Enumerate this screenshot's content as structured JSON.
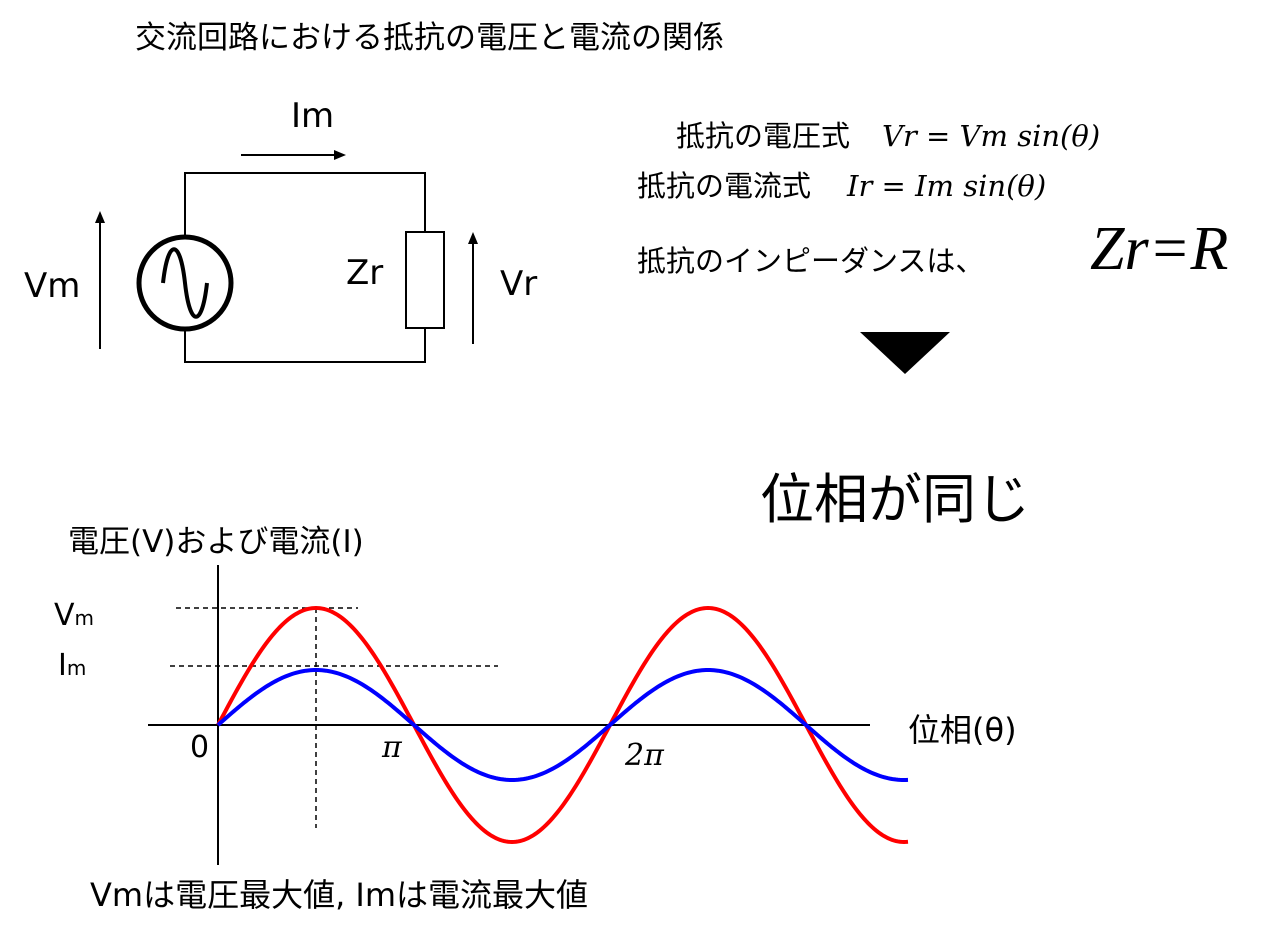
{
  "title": "交流回路における抵抗の電圧と電流の関係",
  "circuit": {
    "current_label": "Im",
    "source_voltage_label": "Vm",
    "resistor_label": "Zr",
    "resistor_voltage_label": "Vr"
  },
  "equations": {
    "voltage_prefix": "抵抗の電圧式",
    "voltage_formula": "Vr = Vm sin(θ)",
    "current_prefix": "抵抗の電流式",
    "current_formula": "Ir =  Im sin(θ)",
    "impedance_prefix": "抵抗のインピーダンスは、",
    "impedance_formula": "Zr=R"
  },
  "conclusion": "位相が同じ",
  "chart_data": {
    "type": "line",
    "ylabel": "電圧(V)および電流(I)",
    "xlabel": "位相(θ)",
    "x_tick_labels": [
      "0",
      "π",
      "2π"
    ],
    "y_tick_labels": [
      "Vm",
      "Im"
    ],
    "x_range": [
      0,
      "≈3.55π"
    ],
    "series": [
      {
        "color": "#ff0000",
        "amplitude": "Vm",
        "relative_amplitude": 1.0
      },
      {
        "color": "#0000ff",
        "amplitude": "Im",
        "relative_amplitude": 0.47
      }
    ]
  },
  "footnote": "Vmは電圧最大値, Imは電流最大値",
  "colors": {
    "voltage": "#ff0000",
    "current": "#0000ff",
    "ink": "#000000"
  }
}
